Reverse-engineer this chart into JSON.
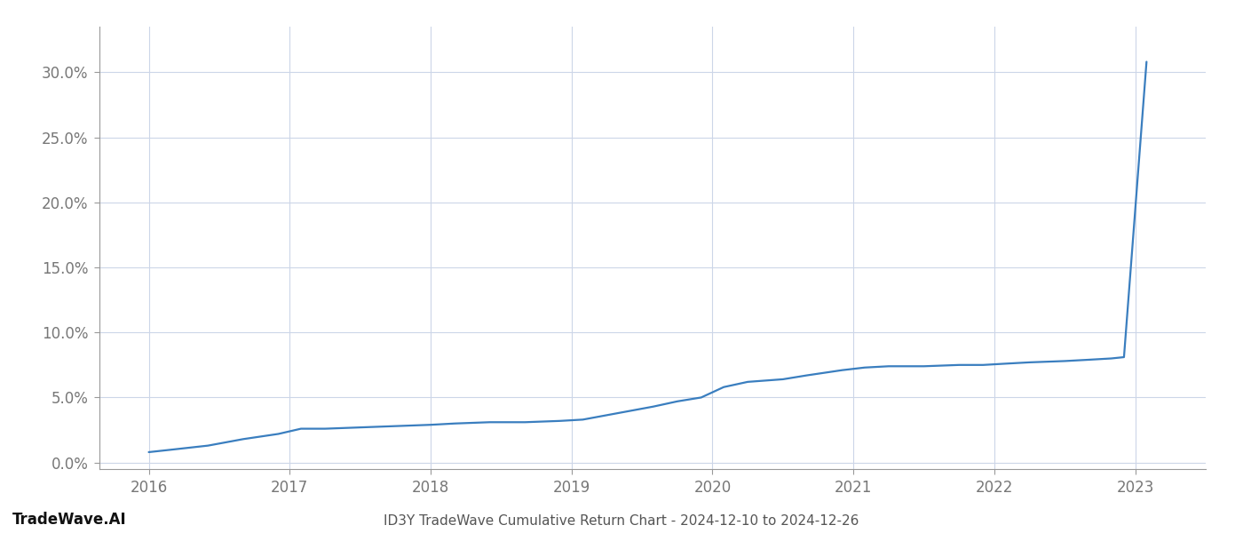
{
  "title": "ID3Y TradeWave Cumulative Return Chart - 2024-12-10 to 2024-12-26",
  "watermark": "TradeWave.AI",
  "line_color": "#3a7ebf",
  "background_color": "#ffffff",
  "grid_color": "#ccd6e8",
  "x_values": [
    2016.0,
    2016.17,
    2016.42,
    2016.67,
    2016.92,
    2017.08,
    2017.25,
    2017.5,
    2017.75,
    2018.0,
    2018.17,
    2018.42,
    2018.67,
    2018.92,
    2019.08,
    2019.33,
    2019.58,
    2019.75,
    2019.92,
    2020.08,
    2020.25,
    2020.5,
    2020.67,
    2020.92,
    2021.08,
    2021.25,
    2021.5,
    2021.75,
    2021.92,
    2022.08,
    2022.25,
    2022.5,
    2022.67,
    2022.83,
    2022.92,
    2023.08
  ],
  "y_values": [
    0.008,
    0.01,
    0.013,
    0.018,
    0.022,
    0.026,
    0.026,
    0.027,
    0.028,
    0.029,
    0.03,
    0.031,
    0.031,
    0.032,
    0.033,
    0.038,
    0.043,
    0.047,
    0.05,
    0.058,
    0.062,
    0.064,
    0.067,
    0.071,
    0.073,
    0.074,
    0.074,
    0.075,
    0.075,
    0.076,
    0.077,
    0.078,
    0.079,
    0.08,
    0.081,
    0.308
  ],
  "xlim": [
    2015.65,
    2023.5
  ],
  "ylim": [
    -0.005,
    0.335
  ],
  "yticks": [
    0.0,
    0.05,
    0.1,
    0.15,
    0.2,
    0.25,
    0.3
  ],
  "xticks": [
    2016,
    2017,
    2018,
    2019,
    2020,
    2021,
    2022,
    2023
  ],
  "line_width": 1.6,
  "title_fontsize": 11,
  "tick_fontsize": 12,
  "watermark_fontsize": 12
}
